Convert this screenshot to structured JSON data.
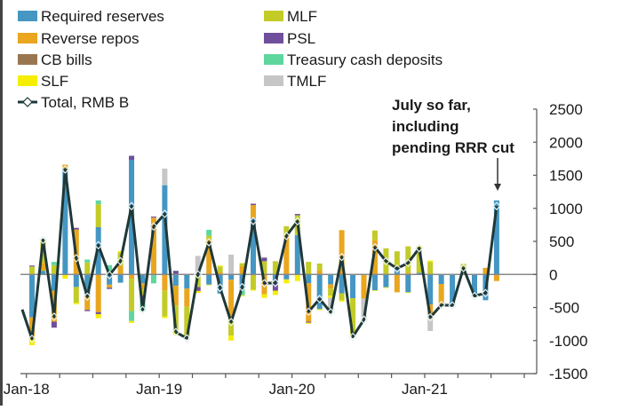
{
  "chart_data": {
    "type": "bar",
    "subtype": "stacked bar with line overlay",
    "x": [
      "Jan-18",
      "Feb-18",
      "Mar-18",
      "Apr-18",
      "May-18",
      "Jun-18",
      "Jul-18",
      "Aug-18",
      "Sep-18",
      "Oct-18",
      "Nov-18",
      "Dec-18",
      "Jan-19",
      "Feb-19",
      "Mar-19",
      "Apr-19",
      "May-19",
      "Jun-19",
      "Jul-19",
      "Aug-19",
      "Sep-19",
      "Oct-19",
      "Nov-19",
      "Dec-19",
      "Jan-20",
      "Feb-20",
      "Mar-20",
      "Apr-20",
      "May-20",
      "Jun-20",
      "Jul-20",
      "Aug-20",
      "Sep-20",
      "Oct-20",
      "Nov-20",
      "Dec-20",
      "Jan-21",
      "Feb-21",
      "Mar-21",
      "Apr-21",
      "May-21",
      "Jun-21",
      "Jul-21"
    ],
    "x_tick_labels": [
      "Jan-18",
      "Jan-19",
      "Jan-20",
      "Jan-21"
    ],
    "y_ticks": [
      2500,
      2000,
      1500,
      1000,
      500,
      0,
      -500,
      -1000,
      -1500
    ],
    "ylim": [
      -1500,
      2500
    ],
    "y_axis_side": "right",
    "grid": false,
    "legend_placement": "top-left",
    "series": [
      {
        "name": "Required reserves",
        "color": "#4596c2",
        "values": [
          -650,
          55,
          -245,
          1600,
          -190,
          -310,
          715,
          -155,
          -125,
          1735,
          -135,
          0,
          1350,
          -170,
          -215,
          0,
          -155,
          -290,
          -80,
          -225,
          850,
          0,
          -135,
          -75,
          595,
          -135,
          -525,
          -150,
          -285,
          -360,
          0,
          -240,
          -195,
          105,
          -270,
          25,
          -455,
          -145,
          -465,
          0,
          -320,
          -390,
          1120
        ]
      },
      {
        "name": "Reverse repos",
        "color": "#e9a61e",
        "values": [
          -310,
          120,
          -470,
          60,
          680,
          -225,
          -570,
          -45,
          135,
          -65,
          -90,
          860,
          -240,
          -300,
          -275,
          0,
          530,
          30,
          -570,
          125,
          200,
          -300,
          0,
          605,
          0,
          -580,
          65,
          -65,
          670,
          0,
          -365,
          515,
          0,
          -270,
          25,
          0,
          -155,
          -305,
          0,
          35,
          0,
          100,
          -100
        ]
      },
      {
        "name": "CB bills",
        "color": "#9a7650",
        "values": [
          0,
          0,
          0,
          0,
          0,
          0,
          0,
          0,
          0,
          0,
          0,
          0,
          0,
          0,
          0,
          0,
          0,
          0,
          0,
          0,
          0,
          0,
          0,
          0,
          0,
          0,
          0,
          0,
          0,
          0,
          0,
          0,
          0,
          0,
          0,
          0,
          0,
          0,
          0,
          0,
          0,
          0,
          0
        ]
      },
      {
        "name": "MLF",
        "color": "#c3cb27",
        "values": [
          120,
          350,
          140,
          0,
          -240,
          180,
          345,
          40,
          200,
          -490,
          -90,
          0,
          -395,
          -390,
          -445,
          -190,
          55,
          90,
          -275,
          45,
          -230,
          200,
          200,
          125,
          300,
          190,
          100,
          -105,
          -105,
          -570,
          0,
          150,
          395,
          245,
          400,
          400,
          190,
          0,
          0,
          125,
          0,
          0,
          0
        ]
      },
      {
        "name": "PSL",
        "color": "#6f4f9c",
        "values": [
          15,
          0,
          -90,
          0,
          25,
          -20,
          -30,
          -20,
          0,
          60,
          -45,
          15,
          0,
          55,
          0,
          -60,
          0,
          0,
          0,
          0,
          20,
          55,
          -110,
          0,
          20,
          -15,
          0,
          0,
          0,
          0,
          0,
          0,
          0,
          0,
          0,
          0,
          0,
          0,
          0,
          0,
          0,
          0,
          0
        ]
      },
      {
        "name": "Treasury cash deposits",
        "color": "#5fd69e",
        "values": [
          0,
          0,
          50,
          0,
          0,
          45,
          60,
          100,
          0,
          -150,
          -180,
          -135,
          0,
          0,
          0,
          0,
          90,
          0,
          0,
          -90,
          0,
          0,
          0,
          0,
          0,
          0,
          0,
          0,
          0,
          0,
          0,
          0,
          0,
          0,
          0,
          0,
          0,
          0,
          0,
          0,
          0,
          0,
          0
        ]
      },
      {
        "name": "SLF",
        "color": "#f5ee00",
        "values": [
          -110,
          0,
          0,
          -65,
          -20,
          0,
          -60,
          0,
          20,
          -30,
          0,
          0,
          -25,
          -60,
          0,
          -30,
          -10,
          15,
          -75,
          -15,
          -15,
          -55,
          -65,
          -60,
          -100,
          -15,
          -15,
          -35,
          -20,
          0,
          0,
          -10,
          -10,
          0,
          -10,
          0,
          20,
          0,
          0,
          0,
          0,
          0,
          0
        ]
      },
      {
        "name": "TMLF",
        "color": "#c6c6c6",
        "values": [
          0,
          0,
          0,
          0,
          0,
          0,
          0,
          0,
          0,
          0,
          0,
          0,
          250,
          0,
          0,
          280,
          0,
          0,
          300,
          0,
          0,
          0,
          0,
          0,
          0,
          0,
          0,
          -210,
          0,
          0,
          -320,
          0,
          0,
          0,
          0,
          0,
          -245,
          0,
          0,
          0,
          0,
          0,
          0
        ]
      }
    ],
    "line": {
      "name": "Total, RMB B",
      "color": "#1f3838",
      "values": [
        -975,
        523,
        -640,
        1588,
        246,
        -336,
        443,
        -10,
        201,
        1034,
        -537,
        725,
        917,
        -872,
        -966,
        0,
        487,
        -201,
        -720,
        -192,
        809,
        -134,
        -128,
        582,
        805,
        -564,
        -371,
        -573,
        264,
        -944,
        -685,
        412,
        201,
        89,
        174,
        398,
        -649,
        -461,
        -470,
        98,
        -327,
        -282,
        1034
      ]
    },
    "annotation": {
      "lines": [
        "July so far,",
        "including",
        "pending RRR cut"
      ],
      "target": "Jul-21"
    }
  }
}
